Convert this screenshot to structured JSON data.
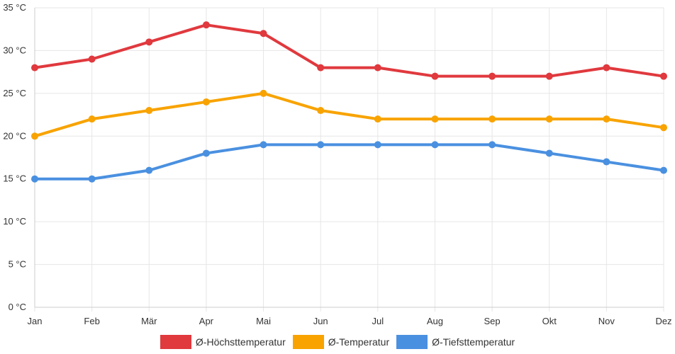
{
  "chart_data": {
    "type": "line",
    "categories": [
      "Jan",
      "Feb",
      "Mär",
      "Apr",
      "Mai",
      "Jun",
      "Jul",
      "Aug",
      "Sep",
      "Okt",
      "Nov",
      "Dez"
    ],
    "y_ticks": [
      "0 °C",
      "5 °C",
      "10 °C",
      "15 °C",
      "20 °C",
      "25 °C",
      "30 °C",
      "35 °C"
    ],
    "ylim": [
      0,
      35
    ],
    "grid": true,
    "legend_position": "bottom",
    "series": [
      {
        "name": "Ø-Höchsttemperatur",
        "color": "#e0393e",
        "values": [
          28,
          29,
          31,
          33,
          32,
          28,
          28,
          27,
          27,
          27,
          28,
          27
        ]
      },
      {
        "name": "Ø-Temperatur",
        "color": "#f8a300",
        "values": [
          20,
          22,
          23,
          24,
          25,
          23,
          22,
          22,
          22,
          22,
          22,
          21
        ]
      },
      {
        "name": "Ø-Tiefsttemperatur",
        "color": "#4a90e0",
        "values": [
          15,
          15,
          16,
          18,
          19,
          19,
          19,
          19,
          19,
          18,
          17,
          16
        ]
      }
    ]
  }
}
